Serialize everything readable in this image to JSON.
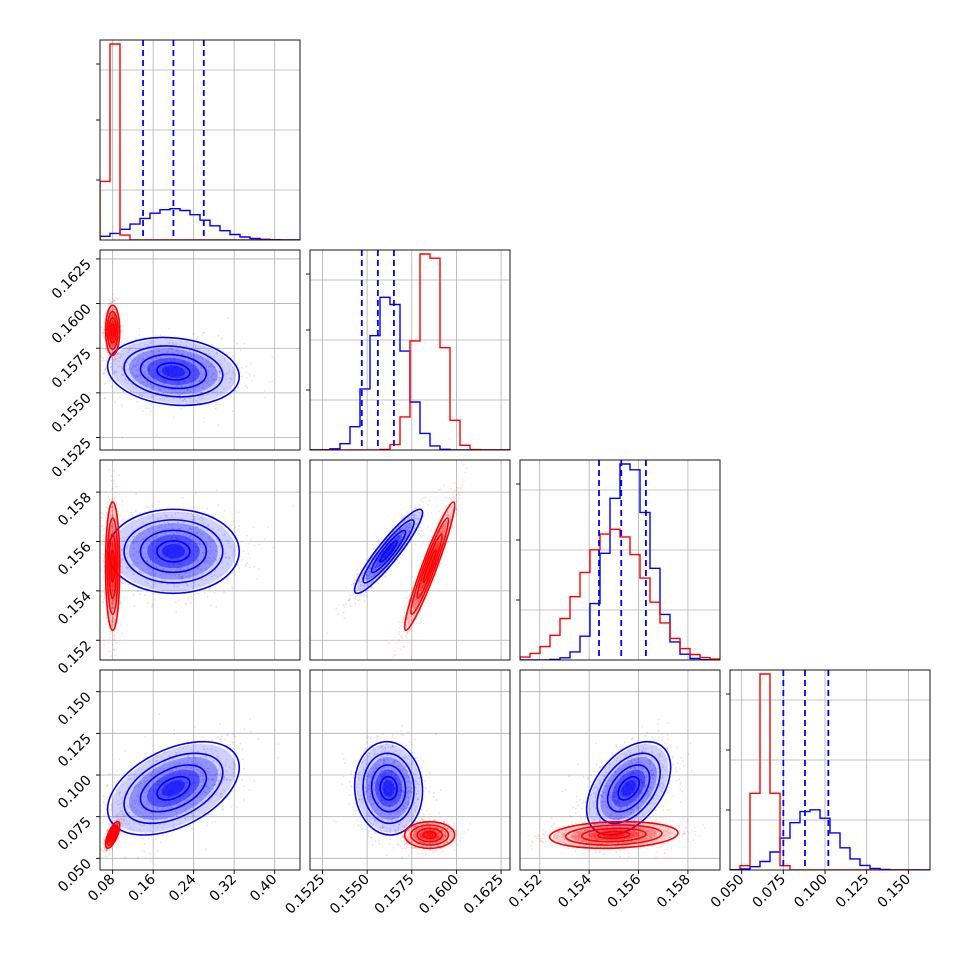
{
  "chart_data": {
    "type": "corner",
    "grid": true,
    "colors": {
      "blue": "#0000ff",
      "red": "#ff0000"
    },
    "parameters": [
      {
        "index": 0,
        "range": [
          0.055,
          0.45
        ],
        "ticks": [
          "0.08",
          "0.16",
          "0.24",
          "0.32",
          "0.40"
        ],
        "tick_values": [
          0.08,
          0.16,
          0.24,
          0.32,
          0.4
        ]
      },
      {
        "index": 1,
        "range": [
          0.1518,
          0.163
        ],
        "ticks": [
          "0.1525",
          "0.1550",
          "0.1575",
          "0.1600",
          "0.1625"
        ],
        "tick_values": [
          0.1525,
          0.155,
          0.1575,
          0.16,
          0.1625
        ]
      },
      {
        "index": 2,
        "range": [
          0.1512,
          0.1593
        ],
        "ticks": [
          "0.152",
          "0.154",
          "0.156",
          "0.158"
        ],
        "tick_values": [
          0.152,
          0.154,
          0.156,
          0.158
        ]
      },
      {
        "index": 3,
        "range": [
          0.043,
          0.163
        ],
        "ticks": [
          "0.050",
          "0.075",
          "0.100",
          "0.125",
          "0.150"
        ],
        "tick_values": [
          0.05,
          0.075,
          0.1,
          0.125,
          0.15
        ]
      }
    ],
    "series": [
      {
        "color": "blue",
        "means": [
          0.2,
          0.1562,
          0.1556,
          0.092
        ],
        "sds": [
          0.065,
          0.00095,
          0.00085,
          0.014
        ],
        "quantiles": [
          [
            0.14,
            0.2,
            0.26
          ],
          [
            0.1547,
            0.1556,
            0.1565
          ],
          [
            0.1544,
            0.1553,
            0.1563
          ],
          [
            0.075,
            0.088,
            0.102
          ]
        ],
        "correlations": {
          "1-0": -0.15,
          "2-0": 0.0,
          "2-1": 0.92,
          "3-0": 0.45,
          "3-1": -0.05,
          "3-2": 0.45
        }
      },
      {
        "color": "red",
        "means": [
          0.08,
          0.1585,
          0.155,
          0.064
        ],
        "sds": [
          0.007,
          0.0007,
          0.0013,
          0.004
        ],
        "correlations": {
          "1-0": 0.0,
          "2-0": 0.0,
          "2-1": 0.95,
          "3-0": 0.7,
          "3-1": 0.0,
          "3-2": 0.15
        }
      }
    ]
  }
}
